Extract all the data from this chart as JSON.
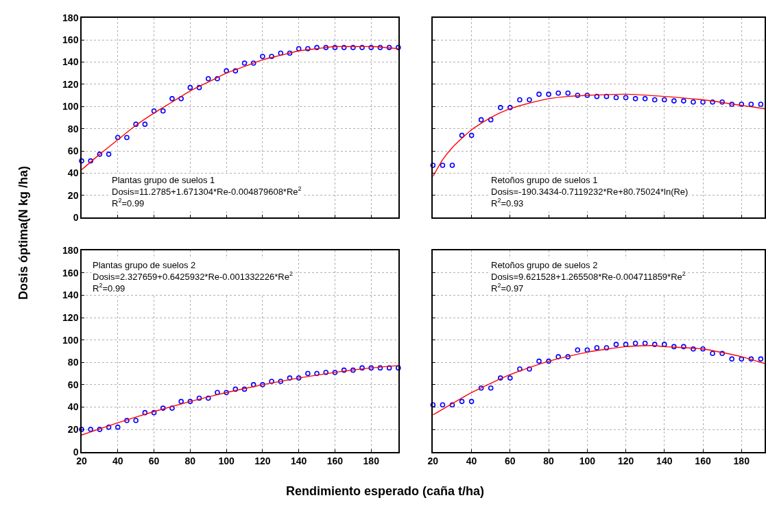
{
  "chart_data": [
    {
      "type": "scatter",
      "ylabel": "Dosis óptima(N kg /ha)",
      "xlabel": "Rendimiento esperado (caña t/ha)",
      "xlim": [
        20,
        195
      ],
      "ylim": [
        0,
        180
      ],
      "xticks": [
        20,
        40,
        60,
        80,
        100,
        120,
        140,
        160,
        180
      ],
      "yticks": [
        0,
        20,
        40,
        60,
        80,
        100,
        120,
        140,
        160,
        180
      ],
      "tick_labels": "y",
      "grid": true,
      "marker": "circle",
      "annotations": [
        "Plantas grupo de suelos 1",
        "Dosis=11.2785+1.671304*Re-0.004879608*Re$^{2}$",
        "R$^{2}$=0.99"
      ],
      "series": [
        {
          "color": "#0000ff",
          "x": [
            20,
            25,
            30,
            35,
            40,
            45,
            50,
            55,
            60,
            65,
            70,
            75,
            80,
            85,
            90,
            95,
            100,
            105,
            110,
            115,
            120,
            125,
            130,
            135,
            140,
            145,
            150,
            155,
            160,
            165,
            170,
            175,
            180,
            185,
            190,
            195
          ],
          "values": [
            51,
            51,
            57,
            57,
            72,
            72,
            84,
            84,
            96,
            96,
            107,
            107,
            117,
            117,
            125,
            125,
            132,
            132,
            139,
            139,
            145,
            145,
            148,
            148,
            152,
            152,
            153,
            153,
            153,
            153,
            153,
            153,
            153,
            153,
            153,
            153
          ]
        },
        {
          "type": "line",
          "color": "#ff0000",
          "marker": "none",
          "x": [
            20,
            30,
            40,
            50,
            60,
            70,
            80,
            90,
            100,
            110,
            120,
            130,
            140,
            150,
            160,
            170,
            180,
            195
          ],
          "values": [
            43,
            57,
            70,
            83,
            94,
            104,
            114,
            122,
            130,
            136,
            142,
            146,
            150,
            152,
            154,
            154,
            154,
            152
          ]
        }
      ]
    },
    {
      "type": "scatter",
      "xlim": [
        20,
        192
      ],
      "ylim": [
        0,
        180
      ],
      "xticks": [
        20,
        40,
        60,
        80,
        100,
        120,
        140,
        160,
        180
      ],
      "yticks": [
        0,
        20,
        40,
        60,
        80,
        100,
        120,
        140,
        160,
        180
      ],
      "tick_labels": false,
      "grid": true,
      "marker": "circle",
      "annotations": [
        "Retoños grupo de suelos 1",
        "Dosis=-190.3434-0.7119232*Re+80.75024*ln(Re)",
        "R$^{2}$=0.93"
      ],
      "series": [
        {
          "color": "#0000ff",
          "x": [
            20,
            25,
            30,
            35,
            40,
            45,
            50,
            55,
            60,
            65,
            70,
            75,
            80,
            85,
            90,
            95,
            100,
            105,
            110,
            115,
            120,
            125,
            130,
            135,
            140,
            145,
            150,
            155,
            160,
            165,
            170,
            175,
            180,
            185,
            190
          ],
          "values": [
            47,
            47,
            47,
            74,
            74,
            88,
            88,
            99,
            99,
            106,
            106,
            111,
            111,
            112,
            112,
            110,
            110,
            109,
            109,
            108,
            108,
            107,
            107,
            106,
            106,
            105,
            105,
            104,
            104,
            104,
            104,
            102,
            102,
            102,
            102
          ]
        },
        {
          "type": "line",
          "color": "#ff0000",
          "marker": "none",
          "x": [
            20,
            25,
            30,
            40,
            50,
            60,
            70,
            80,
            90,
            100,
            120,
            140,
            160,
            180,
            192
          ],
          "values": [
            37,
            52,
            63,
            79,
            90,
            98,
            103,
            107,
            109,
            110,
            111,
            109,
            106,
            101,
            98
          ]
        }
      ]
    },
    {
      "type": "scatter",
      "xlim": [
        20,
        195
      ],
      "ylim": [
        0,
        180
      ],
      "xticks": [
        20,
        40,
        60,
        80,
        100,
        120,
        140,
        160,
        180
      ],
      "yticks": [
        0,
        20,
        40,
        60,
        80,
        100,
        120,
        140,
        160,
        180
      ],
      "grid": true,
      "marker": "circle",
      "annotations": [
        "Plantas grupo de suelos 2",
        "Dosis=2.327659+0.6425932*Re-0.001332226*Re$^{2}$",
        "R$^{2}$=0.99"
      ],
      "series": [
        {
          "color": "#0000ff",
          "x": [
            20,
            25,
            30,
            35,
            40,
            45,
            50,
            55,
            60,
            65,
            70,
            75,
            80,
            85,
            90,
            95,
            100,
            105,
            110,
            115,
            120,
            125,
            130,
            135,
            140,
            145,
            150,
            155,
            160,
            165,
            170,
            175,
            180,
            185,
            190,
            195
          ],
          "values": [
            20,
            20,
            20,
            22,
            22,
            28,
            28,
            35,
            35,
            39,
            39,
            45,
            45,
            48,
            48,
            53,
            53,
            56,
            56,
            60,
            60,
            63,
            63,
            66,
            66,
            70,
            70,
            71,
            71,
            73,
            73,
            75,
            75,
            75,
            75,
            75
          ]
        },
        {
          "type": "line",
          "color": "#ff0000",
          "marker": "none",
          "x": [
            20,
            40,
            60,
            80,
            100,
            120,
            140,
            160,
            180,
            195
          ],
          "values": [
            15,
            26,
            36,
            45,
            53,
            60,
            66,
            71,
            75,
            77
          ]
        }
      ]
    },
    {
      "type": "scatter",
      "xlim": [
        20,
        192
      ],
      "ylim": [
        0,
        180
      ],
      "xticks": [
        20,
        40,
        60,
        80,
        100,
        120,
        140,
        160,
        180
      ],
      "yticks": [
        0,
        20,
        40,
        60,
        80,
        100,
        120,
        140,
        160,
        180
      ],
      "tick_labels": "x",
      "grid": true,
      "marker": "circle",
      "annotations": [
        "Retoños grupo de suelos 2",
        "Dosis=9.621528+1.265508*Re-0.004711859*Re$^{2}$",
        "R$^{2}$=0.97"
      ],
      "series": [
        {
          "color": "#0000ff",
          "x": [
            20,
            25,
            30,
            35,
            40,
            45,
            50,
            55,
            60,
            65,
            70,
            75,
            80,
            85,
            90,
            95,
            100,
            105,
            110,
            115,
            120,
            125,
            130,
            135,
            140,
            145,
            150,
            155,
            160,
            165,
            170,
            175,
            180,
            185,
            190
          ],
          "values": [
            42,
            42,
            42,
            45,
            45,
            57,
            57,
            66,
            66,
            74,
            74,
            81,
            81,
            85,
            85,
            91,
            91,
            93,
            93,
            96,
            96,
            97,
            97,
            96,
            96,
            94,
            94,
            92,
            92,
            88,
            88,
            83,
            83,
            83,
            83
          ]
        },
        {
          "type": "line",
          "color": "#ff0000",
          "marker": "none",
          "x": [
            20,
            40,
            60,
            80,
            100,
            120,
            134,
            140,
            160,
            180,
            192
          ],
          "values": [
            33,
            53,
            69,
            81,
            89,
            94,
            95,
            94,
            92,
            85,
            79
          ]
        }
      ]
    }
  ]
}
